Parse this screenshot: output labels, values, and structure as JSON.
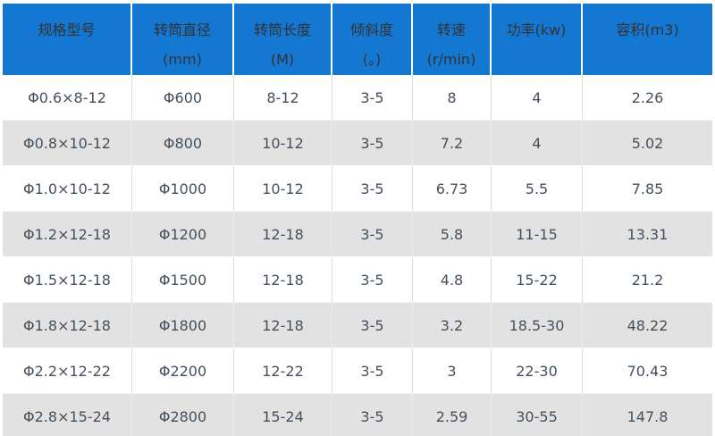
{
  "colors": {
    "header_bg": "#1477d2",
    "header_text": "#333333",
    "row_bg": "#ffffff",
    "row_alt_bg": "#e2e2e2",
    "body_text": "#44505e",
    "column_divider": "#dcdcdc"
  },
  "table": {
    "headers": [
      {
        "lines": [
          "规格型号"
        ]
      },
      {
        "lines": [
          "转筒直径",
          "(mm)"
        ]
      },
      {
        "lines": [
          "转筒长度",
          "(M)"
        ]
      },
      {
        "lines": [
          "倾斜度",
          "(。)"
        ]
      },
      {
        "lines": [
          "转速",
          "(r/min)"
        ]
      },
      {
        "lines": [
          "功率(kw)"
        ]
      },
      {
        "lines": [
          "容积(m3)"
        ]
      }
    ],
    "rows": [
      [
        "Φ0.6×8-12",
        "Φ600",
        "8-12",
        "3-5",
        "8",
        "4",
        "2.26"
      ],
      [
        "Φ0.8×10-12",
        "Φ800",
        "10-12",
        "3-5",
        "7.2",
        "4",
        "5.02"
      ],
      [
        "Φ1.0×10-12",
        "Φ1000",
        "10-12",
        "3-5",
        "6.73",
        "5.5",
        "7.85"
      ],
      [
        "Φ1.2×12-18",
        "Φ1200",
        "12-18",
        "3-5",
        "5.8",
        "11-15",
        "13.31"
      ],
      [
        "Φ1.5×12-18",
        "Φ1500",
        "12-18",
        "3-5",
        "4.8",
        "15-22",
        "21.2"
      ],
      [
        "Φ1.8×12-18",
        "Φ1800",
        "12-18",
        "3-5",
        "3.2",
        "18.5-30",
        "48.22"
      ],
      [
        "Φ2.2×12-22",
        "Φ2200",
        "12-22",
        "3-5",
        "3",
        "22-30",
        "70.43"
      ],
      [
        "Φ2.8×15-24",
        "Φ2800",
        "15-24",
        "3-5",
        "2.59",
        "30-55",
        "147.8"
      ]
    ]
  },
  "chart_data": {
    "type": "table",
    "title": "",
    "columns": [
      "规格型号",
      "转筒直径(mm)",
      "转筒长度(M)",
      "倾斜度(。)",
      "转速(r/min)",
      "功率(kw)",
      "容积(m3)"
    ],
    "rows": [
      [
        "Φ0.6×8-12",
        "Φ600",
        "8-12",
        "3-5",
        "8",
        "4",
        "2.26"
      ],
      [
        "Φ0.8×10-12",
        "Φ800",
        "10-12",
        "3-5",
        "7.2",
        "4",
        "5.02"
      ],
      [
        "Φ1.0×10-12",
        "Φ1000",
        "10-12",
        "3-5",
        "6.73",
        "5.5",
        "7.85"
      ],
      [
        "Φ1.2×12-18",
        "Φ1200",
        "12-18",
        "3-5",
        "5.8",
        "11-15",
        "13.31"
      ],
      [
        "Φ1.5×12-18",
        "Φ1500",
        "12-18",
        "3-5",
        "4.8",
        "15-22",
        "21.2"
      ],
      [
        "Φ1.8×12-18",
        "Φ1800",
        "12-18",
        "3-5",
        "3.2",
        "18.5-30",
        "48.22"
      ],
      [
        "Φ2.2×12-22",
        "Φ2200",
        "12-22",
        "3-5",
        "3",
        "22-30",
        "70.43"
      ],
      [
        "Φ2.8×15-24",
        "Φ2800",
        "15-24",
        "3-5",
        "2.59",
        "30-55",
        "147.8"
      ]
    ]
  }
}
